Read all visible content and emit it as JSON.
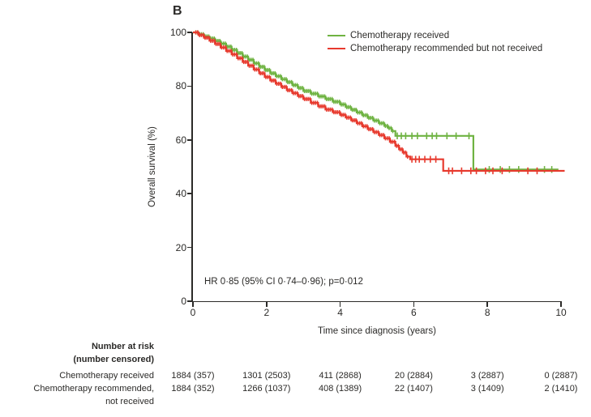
{
  "panel_label": "B",
  "colors": {
    "green": "#6fb342",
    "red": "#e73a2e",
    "axis": "#2b2a28",
    "text": "#2b2a28"
  },
  "legend": {
    "items": [
      {
        "label": "Chemotherapy received",
        "color": "#6fb342"
      },
      {
        "label": "Chemotherapy recommended but not received",
        "color": "#e73a2e"
      }
    ]
  },
  "annotation": "HR 0·85 (95% CI 0·74–0·96); p=0·012",
  "chart_data": {
    "type": "line",
    "subtype": "kaplan-meier-step",
    "title": "B",
    "xlabel": "Time since diagnosis (years)",
    "ylabel": "Overall survival (%)",
    "xlim": [
      0,
      10
    ],
    "ylim": [
      0,
      100
    ],
    "x_ticks": [
      0,
      2,
      4,
      6,
      8,
      10
    ],
    "y_ticks": [
      100,
      80,
      60,
      40,
      20,
      0
    ],
    "grid": false,
    "legend_position": "top-right",
    "series": [
      {
        "name": "Chemotherapy received",
        "color": "#6fb342",
        "dense_censor_until": 5.45,
        "points": [
          [
            0,
            100
          ],
          [
            0.15,
            99.3
          ],
          [
            0.3,
            98.5
          ],
          [
            0.45,
            97.7
          ],
          [
            0.6,
            96.8
          ],
          [
            0.75,
            95.8
          ],
          [
            0.9,
            94.7
          ],
          [
            1.05,
            93.5
          ],
          [
            1.2,
            92.3
          ],
          [
            1.35,
            91.0
          ],
          [
            1.5,
            89.8
          ],
          [
            1.65,
            88.5
          ],
          [
            1.8,
            87.2
          ],
          [
            1.95,
            86.0
          ],
          [
            2.1,
            84.8
          ],
          [
            2.25,
            83.7
          ],
          [
            2.4,
            82.6
          ],
          [
            2.55,
            81.5
          ],
          [
            2.7,
            80.4
          ],
          [
            2.85,
            79.3
          ],
          [
            3.0,
            78.2
          ],
          [
            3.2,
            77.2
          ],
          [
            3.4,
            76.2
          ],
          [
            3.6,
            75.2
          ],
          [
            3.8,
            74.2
          ],
          [
            4.0,
            73.2
          ],
          [
            4.15,
            72.2
          ],
          [
            4.3,
            71.2
          ],
          [
            4.45,
            70.2
          ],
          [
            4.6,
            69.2
          ],
          [
            4.75,
            68.2
          ],
          [
            4.9,
            67.2
          ],
          [
            5.05,
            66.2
          ],
          [
            5.2,
            65.2
          ],
          [
            5.3,
            64.4
          ],
          [
            5.4,
            63.3
          ],
          [
            5.5,
            61.5
          ],
          [
            7.58,
            61.5
          ],
          [
            7.62,
            49.0
          ],
          [
            9.93,
            49.0
          ]
        ],
        "censor_marks": [
          5.55,
          5.66,
          5.78,
          5.95,
          6.1,
          6.35,
          6.5,
          6.62,
          6.9,
          7.15,
          7.5,
          8.05,
          8.35,
          8.6,
          8.85,
          9.55,
          9.75
        ]
      },
      {
        "name": "Chemotherapy recommended but not received",
        "color": "#e73a2e",
        "dense_censor_until": 5.85,
        "points": [
          [
            0,
            100
          ],
          [
            0.15,
            99.0
          ],
          [
            0.3,
            98.0
          ],
          [
            0.45,
            96.9
          ],
          [
            0.6,
            95.7
          ],
          [
            0.75,
            94.4
          ],
          [
            0.9,
            93.1
          ],
          [
            1.05,
            91.8
          ],
          [
            1.2,
            90.4
          ],
          [
            1.35,
            89.0
          ],
          [
            1.5,
            87.6
          ],
          [
            1.65,
            86.2
          ],
          [
            1.8,
            84.8
          ],
          [
            1.95,
            83.4
          ],
          [
            2.1,
            82.1
          ],
          [
            2.25,
            80.9
          ],
          [
            2.4,
            79.7
          ],
          [
            2.55,
            78.5
          ],
          [
            2.7,
            77.4
          ],
          [
            2.85,
            76.3
          ],
          [
            3.0,
            75.2
          ],
          [
            3.2,
            73.8
          ],
          [
            3.4,
            72.5
          ],
          [
            3.6,
            71.3
          ],
          [
            3.8,
            70.3
          ],
          [
            4.0,
            69.3
          ],
          [
            4.15,
            68.3
          ],
          [
            4.3,
            67.3
          ],
          [
            4.45,
            66.2
          ],
          [
            4.6,
            65.1
          ],
          [
            4.75,
            64.0
          ],
          [
            4.9,
            62.9
          ],
          [
            5.05,
            61.8
          ],
          [
            5.2,
            60.6
          ],
          [
            5.35,
            59.3
          ],
          [
            5.5,
            57.8
          ],
          [
            5.6,
            56.5
          ],
          [
            5.7,
            55.3
          ],
          [
            5.8,
            53.8
          ],
          [
            5.9,
            52.8
          ],
          [
            6.75,
            52.8
          ],
          [
            6.8,
            48.5
          ],
          [
            10.1,
            48.5
          ]
        ],
        "censor_marks": [
          5.95,
          6.05,
          6.15,
          6.3,
          6.45,
          6.6,
          6.95,
          7.05,
          7.3,
          7.55,
          7.7,
          7.95,
          8.15,
          8.4,
          9.1,
          9.35
        ]
      }
    ],
    "hr_annotation": "HR 0·85 (95% CI 0·74–0·96); p=0·012"
  },
  "risk_table": {
    "header_line1": "Number at risk",
    "header_line2": "(number censored)",
    "time_points": [
      0,
      2,
      4,
      6,
      8,
      10
    ],
    "rows": [
      {
        "label": "Chemotherapy received",
        "label_line2": "",
        "values": [
          "1884 (357)",
          "1301 (2503)",
          "411 (2868)",
          "20 (2884)",
          "3 (2887)",
          "0 (2887)"
        ]
      },
      {
        "label": "Chemotherapy recommended,",
        "label_line2": "not received",
        "values": [
          "1884 (352)",
          "1266 (1037)",
          "408 (1389)",
          "22 (1407)",
          "3 (1409)",
          "2 (1410)"
        ]
      }
    ]
  }
}
